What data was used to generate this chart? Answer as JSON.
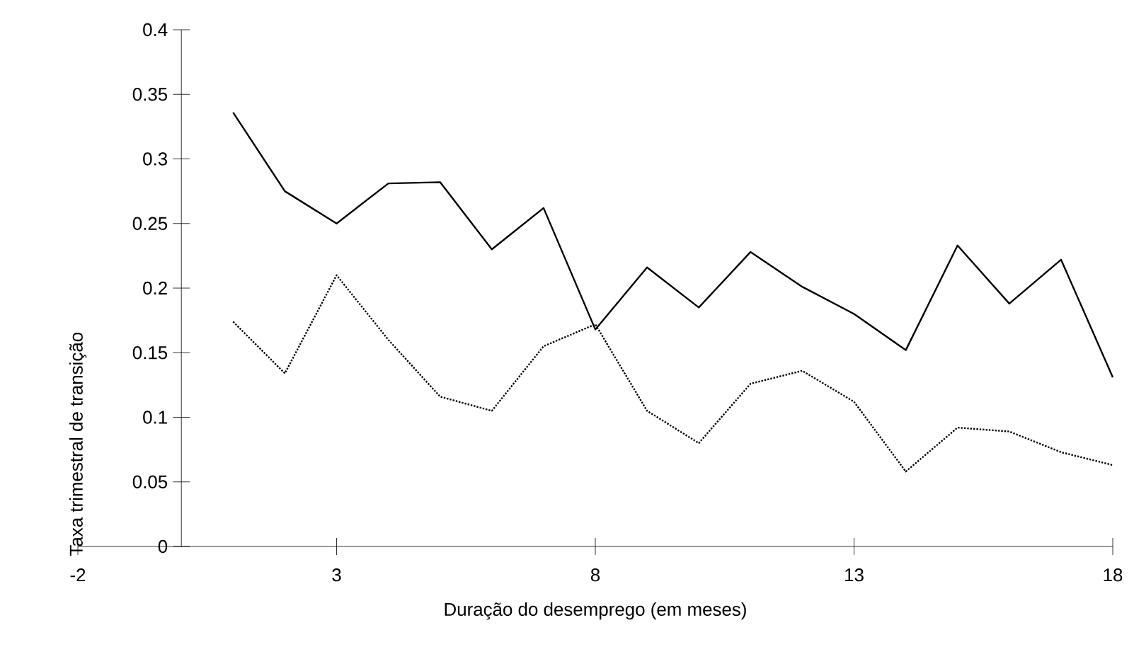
{
  "chart_data": {
    "type": "line",
    "xlabel": "Duração do desemprego (em meses)",
    "ylabel": "Taxa trimestral de transição",
    "x": [
      1,
      2,
      3,
      4,
      5,
      6,
      7,
      8,
      9,
      10,
      11,
      12,
      13,
      14,
      15,
      16,
      17,
      18
    ],
    "series": [
      {
        "color": "#000000",
        "line_style": "solid",
        "values": [
          0.336,
          0.275,
          0.25,
          0.281,
          0.282,
          0.23,
          0.262,
          0.168,
          0.216,
          0.185,
          0.228,
          0.201,
          0.18,
          0.152,
          0.233,
          0.188,
          0.222,
          0.131
        ]
      },
      {
        "color": "#000000",
        "line_style": "dotted",
        "values": [
          0.174,
          0.134,
          0.21,
          0.16,
          0.116,
          0.105,
          0.155,
          0.172,
          0.105,
          0.08,
          0.126,
          0.136,
          0.112,
          0.058,
          0.092,
          0.089,
          0.073,
          0.063
        ]
      }
    ],
    "xlim": [
      -2,
      18
    ],
    "xticks": [
      -2,
      3,
      8,
      13,
      18
    ],
    "ylim": [
      0,
      0.4
    ],
    "yticks": [
      0,
      0.05,
      0.1,
      0.15,
      0.2,
      0.25,
      0.3,
      0.35,
      0.4
    ],
    "grid": false,
    "marker": "none"
  }
}
